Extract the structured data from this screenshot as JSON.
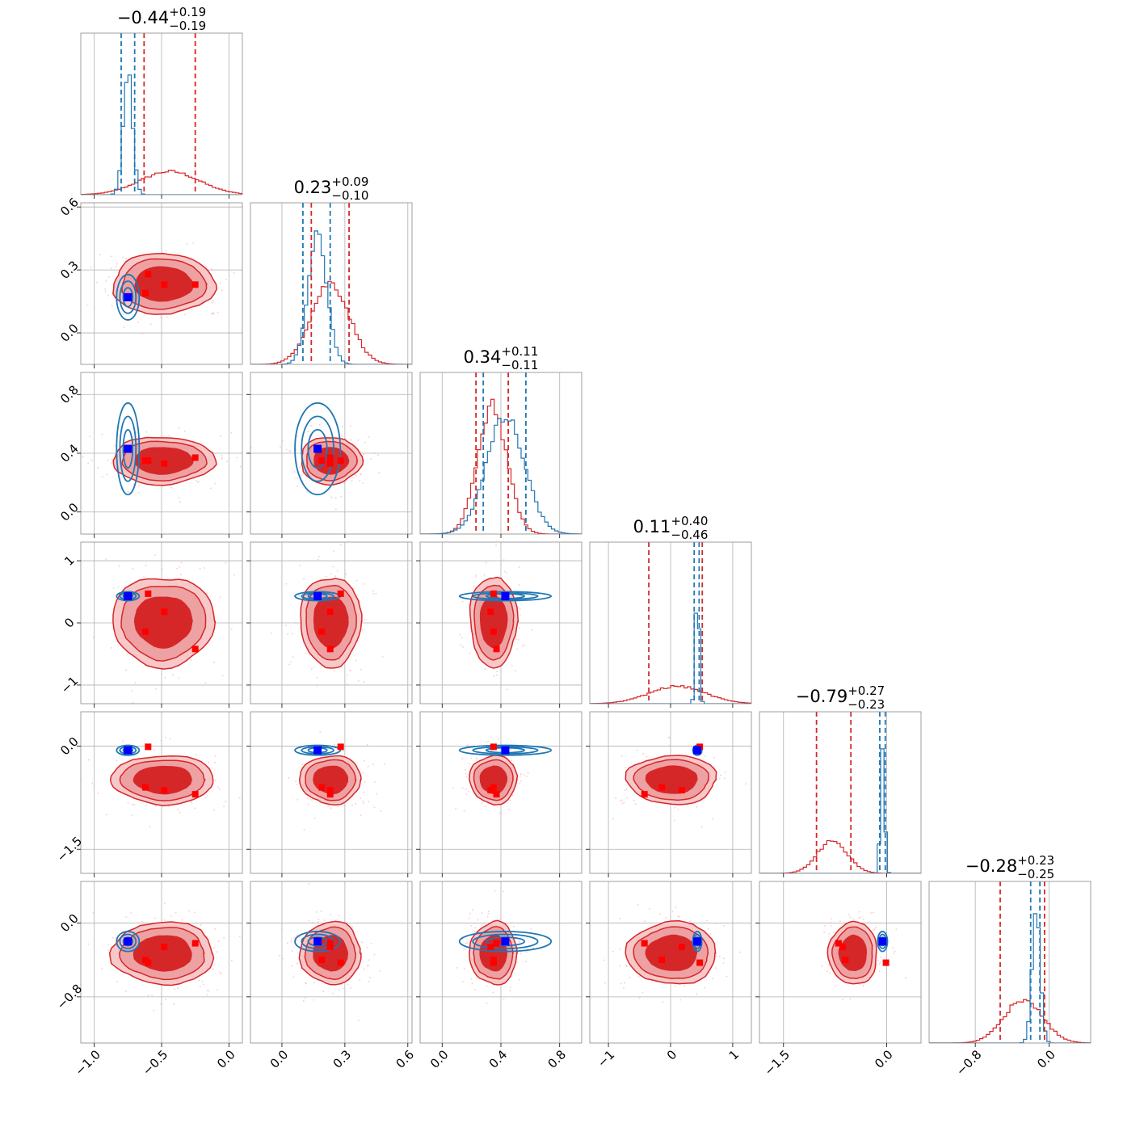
{
  "chart_data": {
    "type": "corner",
    "colors": {
      "red": "#d62728",
      "blue": "#1f77b4",
      "red_fill_outer": "#eea1a2",
      "red_fill_inner": "#d62728",
      "truth_blue": "#0000ff",
      "truth_red": "#ff0000",
      "grid": "#b0b0b0"
    },
    "grid": true,
    "legend": "none",
    "parameters": [
      {
        "range": [
          -1.1,
          0.1
        ],
        "ticks": [
          -1.0,
          -0.5,
          0.0
        ],
        "tick_labels": [
          "−1.0",
          "−0.5",
          "0.0"
        ],
        "title": {
          "value": "−0.44",
          "plus": "+0.19",
          "minus": "−0.19"
        },
        "red_quantiles": [
          -0.63,
          -0.25
        ],
        "blue_quantiles": [
          -0.8,
          -0.7
        ],
        "red_hist": {
          "center": -0.44,
          "sigma": 0.22,
          "peak": 0.16
        },
        "blue_hist": {
          "center": -0.75,
          "sigma": 0.035,
          "peak": 0.86
        }
      },
      {
        "range": [
          -0.15,
          0.62
        ],
        "ticks": [
          0.0,
          0.3,
          0.6
        ],
        "tick_labels": [
          "0.0",
          "0.3",
          "0.6"
        ],
        "title": {
          "value": "0.23",
          "plus": "+0.09",
          "minus": "−0.10"
        },
        "red_quantiles": [
          0.14,
          0.32
        ],
        "blue_quantiles": [
          0.1,
          0.23
        ],
        "red_hist": {
          "center": 0.23,
          "sigma": 0.09,
          "peak": 0.56
        },
        "blue_hist": {
          "center": 0.17,
          "sigma": 0.045,
          "peak": 0.88
        }
      },
      {
        "range": [
          -0.15,
          0.95
        ],
        "ticks": [
          0.0,
          0.4,
          0.8
        ],
        "tick_labels": [
          "0.0",
          "0.4",
          "0.8"
        ],
        "title": {
          "value": "0.34",
          "plus": "+0.11",
          "minus": "−0.11"
        },
        "red_quantiles": [
          0.23,
          0.45
        ],
        "blue_quantiles": [
          0.28,
          0.57
        ],
        "red_hist": {
          "center": 0.34,
          "sigma": 0.1,
          "peak": 0.88
        },
        "blue_hist": {
          "center": 0.43,
          "sigma": 0.13,
          "peak": 0.8
        }
      },
      {
        "range": [
          -1.3,
          1.3
        ],
        "ticks": [
          -1,
          0,
          1
        ],
        "tick_labels": [
          "−1",
          "0",
          "1"
        ],
        "title": {
          "value": "0.11",
          "plus": "+0.40",
          "minus": "−0.46"
        },
        "red_quantiles": [
          -0.35,
          0.51
        ],
        "blue_quantiles": [
          0.38,
          0.46
        ],
        "red_hist": {
          "center": 0.11,
          "sigma": 0.45,
          "peak": 0.12
        },
        "blue_hist": {
          "center": 0.43,
          "sigma": 0.03,
          "peak": 0.87
        }
      },
      {
        "range": [
          -1.85,
          0.5
        ],
        "ticks": [
          -1.5,
          0.0
        ],
        "tick_labels": [
          "−1.5",
          "0.0"
        ],
        "title": {
          "value": "−0.79",
          "plus": "+0.27",
          "minus": "−0.23"
        },
        "red_quantiles": [
          -1.02,
          -0.52
        ],
        "blue_quantiles": [
          -0.1,
          -0.02
        ],
        "red_hist": {
          "center": -0.79,
          "sigma": 0.22,
          "peak": 0.22
        },
        "blue_hist": {
          "center": -0.06,
          "sigma": 0.03,
          "peak": 0.9
        }
      },
      {
        "range": [
          -1.3,
          0.45
        ],
        "ticks": [
          -0.8,
          0.0
        ],
        "tick_labels": [
          "−0.8",
          "0.0"
        ],
        "title": {
          "value": "−0.28",
          "plus": "+0.23",
          "minus": "−0.25"
        },
        "red_quantiles": [
          -0.53,
          -0.05
        ],
        "blue_quantiles": [
          -0.2,
          -0.1
        ],
        "red_hist": {
          "center": -0.28,
          "sigma": 0.21,
          "peak": 0.3
        },
        "blue_hist": {
          "center": -0.14,
          "sigma": 0.045,
          "peak": 0.88
        }
      }
    ],
    "blue_truth": [
      -0.75,
      0.17,
      0.43,
      0.43,
      -0.06,
      -0.2
    ],
    "red_points": [
      [
        -0.6,
        0.28,
        0.35,
        0.47,
        -0.01,
        -0.43
      ],
      [
        -0.62,
        0.19,
        0.35,
        -0.14,
        -0.6,
        -0.4
      ],
      [
        -0.48,
        0.23,
        0.33,
        0.18,
        -0.64,
        -0.26
      ],
      [
        -0.25,
        0.23,
        0.37,
        -0.42,
        -0.7,
        -0.22
      ]
    ],
    "red_density": {
      "sigma_x_scale": [
        0.75,
        0.7,
        0.7,
        0.7,
        0.7,
        0.7
      ]
    }
  }
}
